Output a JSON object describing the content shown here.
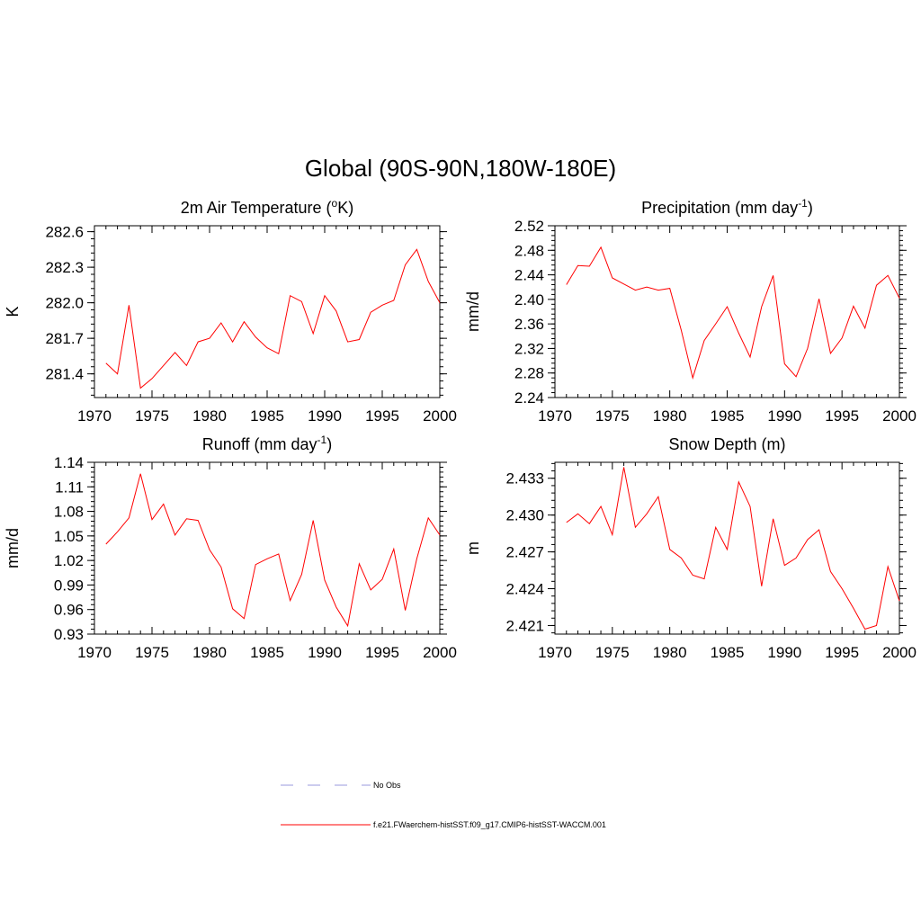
{
  "main_title": "Global (90S-90N,180W-180E)",
  "legend": [
    {
      "label": "No Obs",
      "color": "#9999dd",
      "dash": true
    },
    {
      "label": "f.e21.FWaerchem-histSST.f09_g17.CMIP6-histSST-WACCM.001",
      "color": "#ff0000",
      "dash": false
    }
  ],
  "chart_data": [
    {
      "type": "line",
      "title": "2m Air Temperature (",
      "title_sup": "o",
      "title_tail": "K)",
      "ylabel": "K",
      "xlim": [
        1970,
        2000
      ],
      "ylim": [
        281.2,
        282.65
      ],
      "yticks": [
        281.4,
        281.7,
        282.0,
        282.3,
        282.6
      ],
      "ytick_labels": [
        "281.4",
        "281.7",
        "282.0",
        "282.3",
        "282.6"
      ],
      "yminor_step": 0.06,
      "xticks": [
        1970,
        1975,
        1980,
        1985,
        1990,
        1995,
        2000
      ],
      "x": [
        1971,
        1972,
        1973,
        1974,
        1975,
        1976,
        1977,
        1978,
        1979,
        1980,
        1981,
        1982,
        1983,
        1984,
        1985,
        1986,
        1987,
        1988,
        1989,
        1990,
        1991,
        1992,
        1993,
        1994,
        1995,
        1996,
        1997,
        1998,
        1999,
        2000
      ],
      "series": [
        {
          "values": [
            281.49,
            281.4,
            281.98,
            281.28,
            281.36,
            281.47,
            281.58,
            281.47,
            281.67,
            281.7,
            281.83,
            281.67,
            281.84,
            281.71,
            281.62,
            281.57,
            282.06,
            282.01,
            281.74,
            282.06,
            281.93,
            281.67,
            281.69,
            281.92,
            281.98,
            282.02,
            282.32,
            282.45,
            282.18,
            282.0
          ],
          "color": "#ff0000"
        }
      ]
    },
    {
      "type": "line",
      "title": "Precipitation (mm day",
      "title_sup": "-1",
      "title_tail": ")",
      "ylabel": "mm/d",
      "xlim": [
        1970,
        2000
      ],
      "ylim": [
        2.24,
        2.52
      ],
      "yticks": [
        2.24,
        2.28,
        2.32,
        2.36,
        2.4,
        2.44,
        2.48,
        2.52
      ],
      "ytick_labels": [
        "2.24",
        "2.28",
        "2.32",
        "2.36",
        "2.40",
        "2.44",
        "2.48",
        "2.52"
      ],
      "yminor_step": 0.008,
      "xticks": [
        1970,
        1975,
        1980,
        1985,
        1990,
        1995,
        2000
      ],
      "x": [
        1971,
        1972,
        1973,
        1974,
        1975,
        1976,
        1977,
        1978,
        1979,
        1980,
        1981,
        1982,
        1983,
        1984,
        1985,
        1986,
        1987,
        1988,
        1989,
        1990,
        1991,
        1992,
        1993,
        1994,
        1995,
        1996,
        1997,
        1998,
        1999,
        2000
      ],
      "series": [
        {
          "values": [
            2.424,
            2.455,
            2.454,
            2.485,
            2.435,
            2.425,
            2.415,
            2.42,
            2.415,
            2.418,
            2.35,
            2.272,
            2.333,
            2.36,
            2.388,
            2.345,
            2.306,
            2.388,
            2.439,
            2.295,
            2.274,
            2.32,
            2.401,
            2.312,
            2.337,
            2.389,
            2.353,
            2.423,
            2.439,
            2.402
          ],
          "color": "#ff0000"
        }
      ]
    },
    {
      "type": "line",
      "title": "Runoff (mm day",
      "title_sup": "-1",
      "title_tail": ")",
      "ylabel": "mm/d",
      "xlim": [
        1970,
        2000
      ],
      "ylim": [
        0.93,
        1.14
      ],
      "yticks": [
        0.93,
        0.96,
        0.99,
        1.02,
        1.05,
        1.08,
        1.11,
        1.14
      ],
      "ytick_labels": [
        "0.93",
        "0.96",
        "0.99",
        "1.02",
        "1.05",
        "1.08",
        "1.11",
        "1.14"
      ],
      "yminor_step": 0.006,
      "xticks": [
        1970,
        1975,
        1980,
        1985,
        1990,
        1995,
        2000
      ],
      "x": [
        1971,
        1972,
        1973,
        1974,
        1975,
        1976,
        1977,
        1978,
        1979,
        1980,
        1981,
        1982,
        1983,
        1984,
        1985,
        1986,
        1987,
        1988,
        1989,
        1990,
        1991,
        1992,
        1993,
        1994,
        1995,
        1996,
        1997,
        1998,
        1999,
        2000
      ],
      "series": [
        {
          "values": [
            1.04,
            1.055,
            1.072,
            1.126,
            1.07,
            1.089,
            1.051,
            1.071,
            1.069,
            1.033,
            1.012,
            0.961,
            0.949,
            1.015,
            1.022,
            1.028,
            0.971,
            1.003,
            1.069,
            0.996,
            0.963,
            0.94,
            1.016,
            0.984,
            0.997,
            1.034,
            0.959,
            1.022,
            1.072,
            1.051
          ],
          "color": "#ff0000"
        }
      ]
    },
    {
      "type": "line",
      "title": "Snow Depth (m)",
      "title_sup": "",
      "title_tail": "",
      "ylabel": "m",
      "xlim": [
        1970,
        2000
      ],
      "ylim": [
        2.4203,
        2.4343
      ],
      "yticks": [
        2.421,
        2.424,
        2.427,
        2.43,
        2.433
      ],
      "ytick_labels": [
        "2.421",
        "2.424",
        "2.427",
        "2.430",
        "2.433"
      ],
      "yminor_step": 0.0006,
      "xticks": [
        1970,
        1975,
        1980,
        1985,
        1990,
        1995,
        2000
      ],
      "x": [
        1971,
        1972,
        1973,
        1974,
        1975,
        1976,
        1977,
        1978,
        1979,
        1980,
        1981,
        1982,
        1983,
        1984,
        1985,
        1986,
        1987,
        1988,
        1989,
        1990,
        1991,
        1992,
        1993,
        1994,
        1995,
        1996,
        1997,
        1998,
        1999,
        2000
      ],
      "series": [
        {
          "values": [
            2.4294,
            2.4301,
            2.4293,
            2.4307,
            2.4284,
            2.4339,
            2.429,
            2.4301,
            2.4315,
            2.4272,
            2.4265,
            2.4251,
            2.4248,
            2.429,
            2.4272,
            2.4327,
            2.4307,
            2.4242,
            2.4297,
            2.4259,
            2.4265,
            2.428,
            2.4288,
            2.4254,
            2.424,
            2.4224,
            2.4207,
            2.421,
            2.4258,
            2.423
          ],
          "color": "#ff0000"
        }
      ]
    }
  ]
}
